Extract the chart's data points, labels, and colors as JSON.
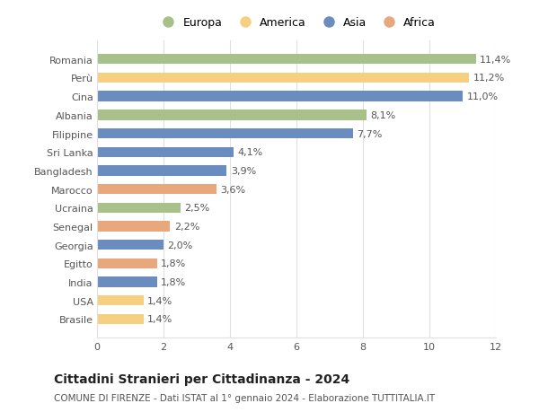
{
  "categories": [
    "Brasile",
    "USA",
    "India",
    "Egitto",
    "Georgia",
    "Senegal",
    "Ucraina",
    "Marocco",
    "Bangladesh",
    "Sri Lanka",
    "Filippine",
    "Albania",
    "Cina",
    "Perù",
    "Romania"
  ],
  "values": [
    1.4,
    1.4,
    1.8,
    1.8,
    2.0,
    2.2,
    2.5,
    3.6,
    3.9,
    4.1,
    7.7,
    8.1,
    11.0,
    11.2,
    11.4
  ],
  "bar_colors": [
    "#f5d080",
    "#f5d080",
    "#6b8cbf",
    "#e8a87c",
    "#6b8cbf",
    "#e8a87c",
    "#a8c08a",
    "#e8a87c",
    "#6b8cbf",
    "#6b8cbf",
    "#6b8cbf",
    "#a8c08a",
    "#6b8cbf",
    "#f5d080",
    "#a8c08a"
  ],
  "labels": [
    "1,4%",
    "1,4%",
    "1,8%",
    "1,8%",
    "2,0%",
    "2,2%",
    "2,5%",
    "3,6%",
    "3,9%",
    "4,1%",
    "7,7%",
    "8,1%",
    "11,0%",
    "11,2%",
    "11,4%"
  ],
  "xlim": [
    0,
    12
  ],
  "xticks": [
    0,
    2,
    4,
    6,
    8,
    10,
    12
  ],
  "title": "Cittadini Stranieri per Cittadinanza - 2024",
  "subtitle": "COMUNE DI FIRENZE - Dati ISTAT al 1° gennaio 2024 - Elaborazione TUTTITALIA.IT",
  "legend_labels": [
    "Europa",
    "America",
    "Asia",
    "Africa"
  ],
  "legend_colors": [
    "#a8c08a",
    "#f5d080",
    "#6b8cbf",
    "#e8a87c"
  ],
  "bg_color": "#ffffff",
  "grid_color": "#e0e0e0",
  "bar_height": 0.55,
  "label_fontsize": 8,
  "title_fontsize": 10,
  "subtitle_fontsize": 7.5,
  "tick_fontsize": 8,
  "legend_fontsize": 9,
  "ytick_fontsize": 8
}
